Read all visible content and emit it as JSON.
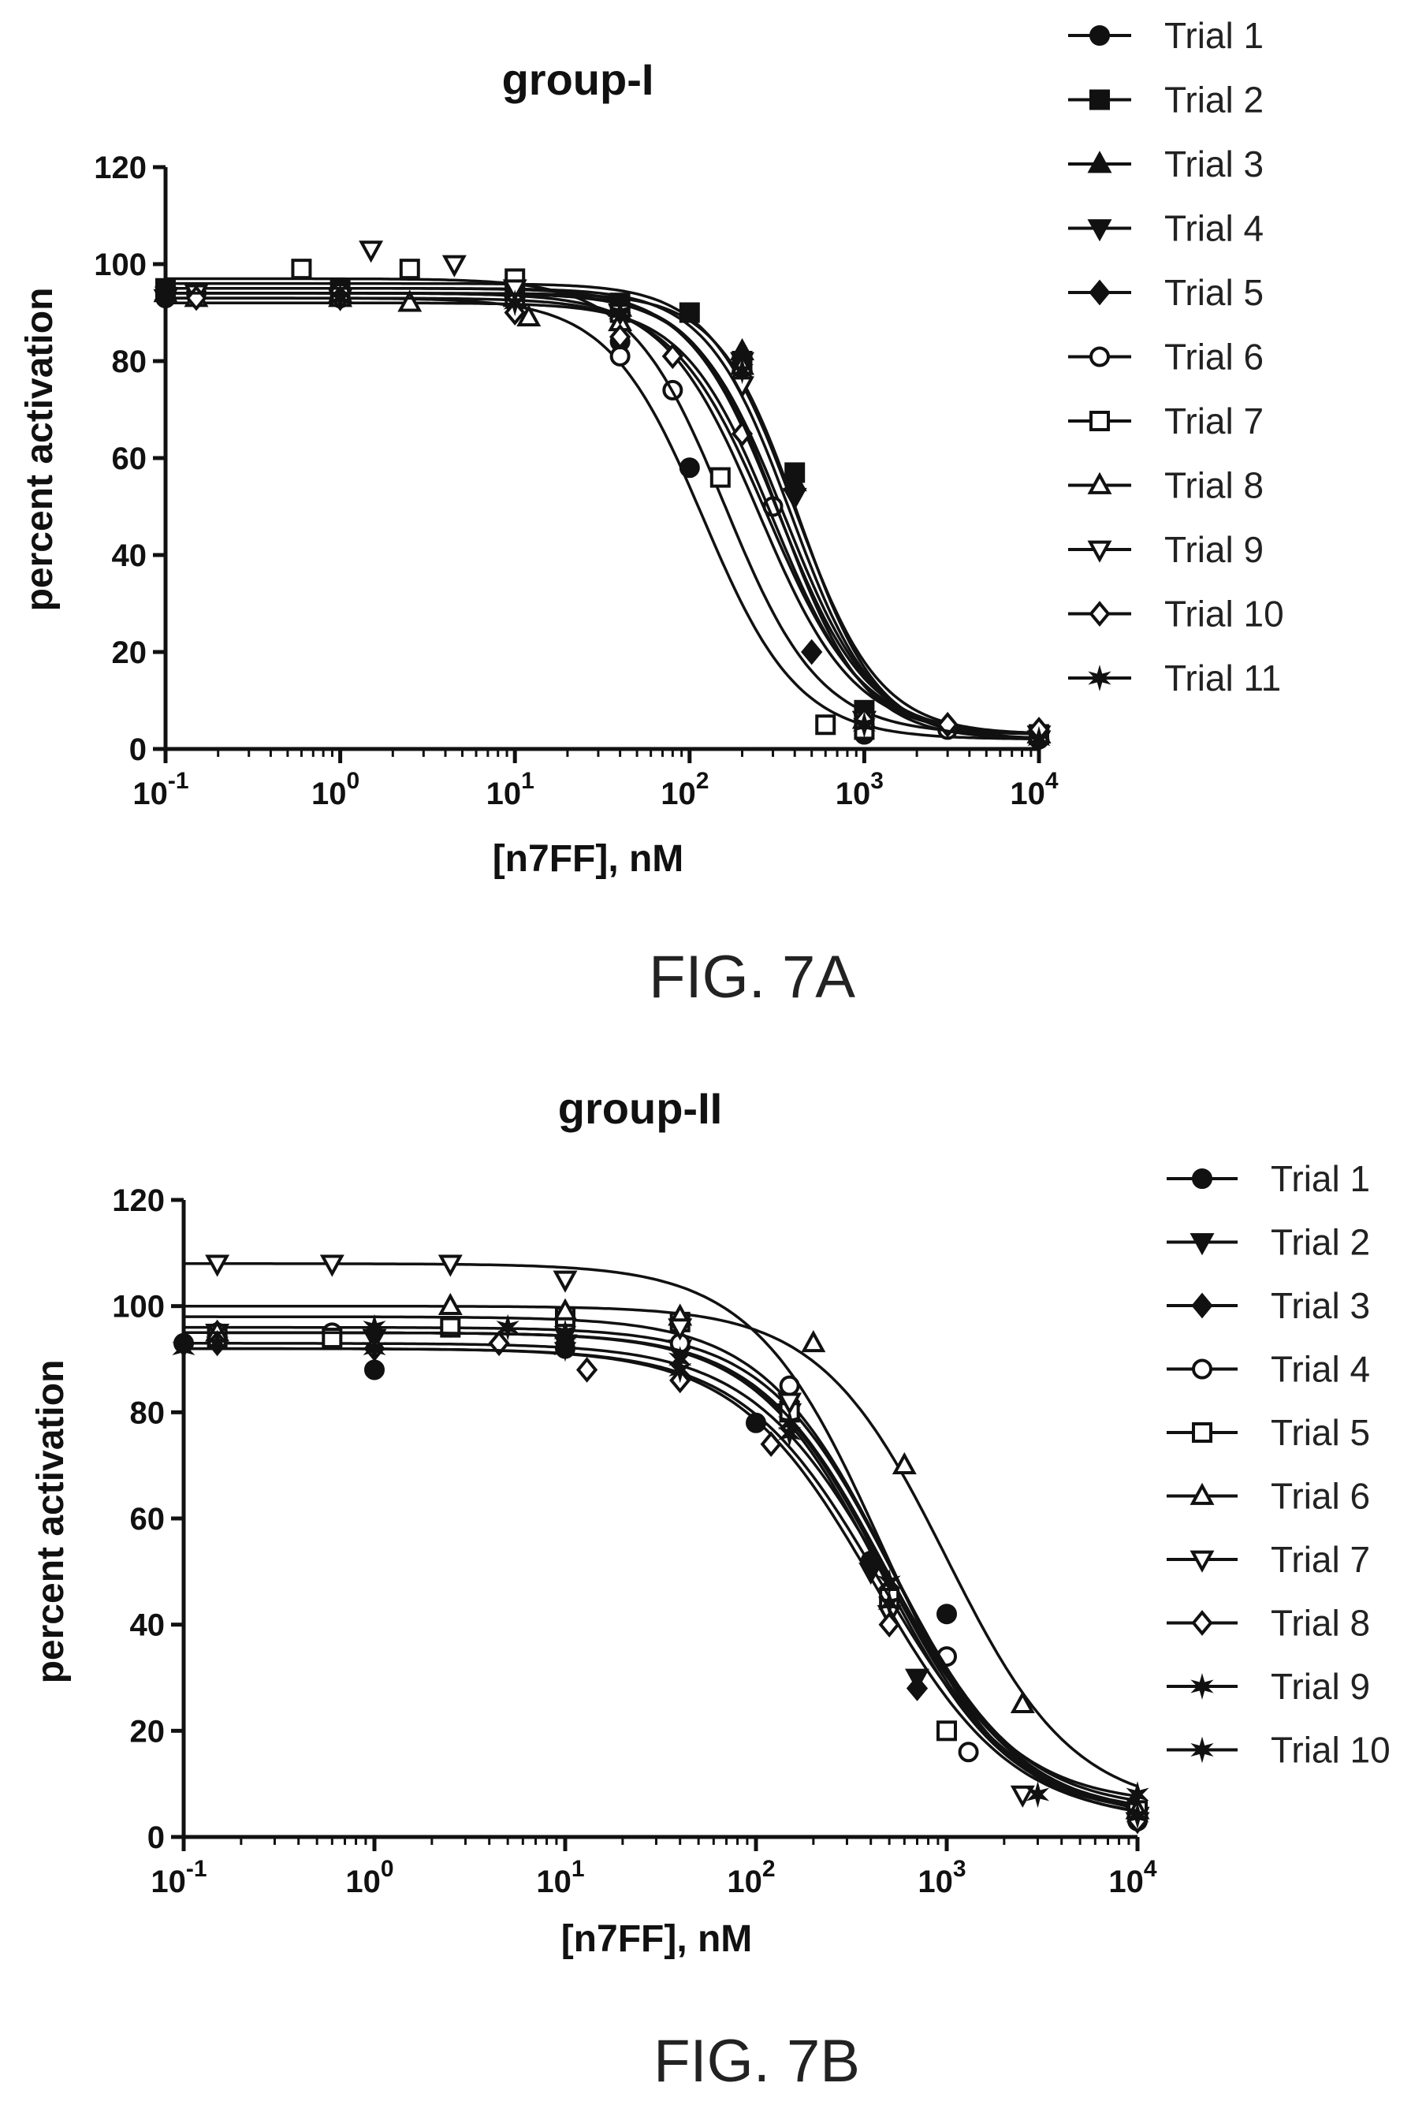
{
  "chart_data": [
    {
      "type": "line",
      "title": "group-I",
      "xlabel": "[n7FF], nM",
      "ylabel": "percent activation",
      "x_scale": "log",
      "xlim": [
        0.1,
        10000
      ],
      "ylim": [
        0,
        120
      ],
      "y_ticks": [
        0,
        20,
        40,
        60,
        80,
        100,
        120
      ],
      "x_ticks": [
        {
          "value": 0.1,
          "base": "10",
          "exp": "-1"
        },
        {
          "value": 1,
          "base": "10",
          "exp": "0"
        },
        {
          "value": 10,
          "base": "10",
          "exp": "1"
        },
        {
          "value": 100,
          "base": "10",
          "exp": "2"
        },
        {
          "value": 1000,
          "base": "10",
          "exp": "3"
        },
        {
          "value": 10000,
          "base": "10",
          "exp": "4"
        }
      ],
      "caption": "FIG. 7A",
      "legend_position": "top-right",
      "series": [
        {
          "name": "Trial 1",
          "marker": "circle-filled",
          "top": 93,
          "bottom": 2,
          "ec50": 120,
          "hill": 1.6,
          "x": [
            0.1,
            1,
            10,
            40,
            100,
            1000,
            10000
          ],
          "y": [
            93,
            93,
            93,
            84,
            58,
            3,
            2
          ]
        },
        {
          "name": "Trial 2",
          "marker": "square-filled",
          "top": 96,
          "bottom": 3,
          "ec50": 400,
          "hill": 1.8,
          "x": [
            0.1,
            1,
            10,
            40,
            100,
            200,
            400,
            1000,
            10000
          ],
          "y": [
            95,
            95,
            95,
            92,
            90,
            80,
            57,
            8,
            3
          ]
        },
        {
          "name": "Trial 3",
          "marker": "triangle-up-filled",
          "top": 95,
          "bottom": 2,
          "ec50": 380,
          "hill": 1.8,
          "x": [
            0.1,
            1,
            10,
            40,
            200,
            400,
            1000,
            10000
          ],
          "y": [
            94,
            94,
            93,
            91,
            82,
            55,
            6,
            3
          ]
        },
        {
          "name": "Trial 4",
          "marker": "triangle-down-filled",
          "top": 94,
          "bottom": 2,
          "ec50": 350,
          "hill": 1.7,
          "x": [
            0.1,
            1,
            10,
            40,
            200,
            400,
            1000,
            10000
          ],
          "y": [
            93,
            93,
            92,
            90,
            80,
            52,
            6,
            2
          ]
        },
        {
          "name": "Trial 5",
          "marker": "diamond-filled",
          "top": 94,
          "bottom": 2,
          "ec50": 420,
          "hill": 1.9,
          "x": [
            0.1,
            1,
            10,
            40,
            200,
            500,
            1000,
            10000
          ],
          "y": [
            94,
            94,
            93,
            90,
            78,
            20,
            7,
            2
          ]
        },
        {
          "name": "Trial 6",
          "marker": "circle-open",
          "top": 94,
          "bottom": 3,
          "ec50": 250,
          "hill": 1.6,
          "x": [
            0.15,
            1,
            10,
            40,
            80,
            300,
            1000,
            3000,
            10000
          ],
          "y": [
            94,
            94,
            92,
            81,
            74,
            50,
            5,
            4,
            3
          ]
        },
        {
          "name": "Trial 7",
          "marker": "square-open",
          "top": 97,
          "bottom": 3,
          "ec50": 160,
          "hill": 1.6,
          "x": [
            0.6,
            2.5,
            10,
            40,
            150,
            600,
            1000,
            10000
          ],
          "y": [
            99,
            99,
            97,
            90,
            56,
            5,
            4,
            3
          ]
        },
        {
          "name": "Trial 8",
          "marker": "triangle-up-open",
          "top": 92,
          "bottom": 3,
          "ec50": 300,
          "hill": 1.7,
          "x": [
            0.15,
            1,
            2.5,
            12,
            40,
            200,
            1000,
            10000
          ],
          "y": [
            93,
            93,
            92,
            89,
            88,
            79,
            6,
            3
          ]
        },
        {
          "name": "Trial 9",
          "marker": "triangle-down-open",
          "top": 95,
          "bottom": 3,
          "ec50": 320,
          "hill": 1.7,
          "x": [
            0.15,
            1.5,
            4.5,
            10,
            40,
            200,
            1000,
            10000
          ],
          "y": [
            94,
            103,
            100,
            95,
            90,
            75,
            6,
            3
          ]
        },
        {
          "name": "Trial 10",
          "marker": "diamond-open",
          "top": 93,
          "bottom": 3,
          "ec50": 280,
          "hill": 1.6,
          "x": [
            0.15,
            1,
            10,
            40,
            80,
            200,
            1000,
            3000,
            10000
          ],
          "y": [
            93,
            93,
            90,
            85,
            81,
            65,
            6,
            5,
            4
          ]
        },
        {
          "name": "Trial 11",
          "marker": "star",
          "top": 94,
          "bottom": 2,
          "ec50": 330,
          "hill": 1.8,
          "x": [
            0.1,
            1,
            10,
            40,
            200,
            1000,
            10000
          ],
          "y": [
            94,
            93,
            92,
            90,
            78,
            5,
            2
          ]
        }
      ]
    },
    {
      "type": "line",
      "title": "group-II",
      "xlabel": "[n7FF], nM",
      "ylabel": "percent activation",
      "x_scale": "log",
      "xlim": [
        0.1,
        10000
      ],
      "ylim": [
        0,
        120
      ],
      "y_ticks": [
        0,
        20,
        40,
        60,
        80,
        100,
        120
      ],
      "x_ticks": [
        {
          "value": 0.1,
          "base": "10",
          "exp": "-1"
        },
        {
          "value": 1,
          "base": "10",
          "exp": "0"
        },
        {
          "value": 10,
          "base": "10",
          "exp": "1"
        },
        {
          "value": 100,
          "base": "10",
          "exp": "2"
        },
        {
          "value": 1000,
          "base": "10",
          "exp": "3"
        },
        {
          "value": 10000,
          "base": "10",
          "exp": "4"
        }
      ],
      "caption": "FIG. 7B",
      "legend_position": "right",
      "series": [
        {
          "name": "Trial 1",
          "marker": "circle-filled",
          "top": 93,
          "bottom": 3,
          "ec50": 500,
          "hill": 1.2,
          "x": [
            0.1,
            1,
            10,
            100,
            400,
            1000,
            10000
          ],
          "y": [
            93,
            88,
            92,
            78,
            52,
            42,
            3
          ]
        },
        {
          "name": "Trial 2",
          "marker": "triangle-down-filled",
          "top": 95,
          "bottom": 4,
          "ec50": 480,
          "hill": 1.3,
          "x": [
            0.15,
            1,
            10,
            40,
            150,
            400,
            700,
            10000
          ],
          "y": [
            95,
            94,
            93,
            92,
            80,
            50,
            30,
            4
          ]
        },
        {
          "name": "Trial 3",
          "marker": "diamond-filled",
          "top": 95,
          "bottom": 4,
          "ec50": 460,
          "hill": 1.3,
          "x": [
            0.15,
            1,
            10,
            40,
            150,
            400,
            700,
            10000
          ],
          "y": [
            95,
            95,
            93,
            92,
            82,
            52,
            28,
            4
          ]
        },
        {
          "name": "Trial 4",
          "marker": "circle-open",
          "top": 96,
          "bottom": 4,
          "ec50": 520,
          "hill": 1.3,
          "x": [
            0.15,
            0.6,
            2.5,
            10,
            40,
            150,
            500,
            1000,
            1300,
            10000
          ],
          "y": [
            95,
            95,
            96,
            96,
            93,
            85,
            45,
            34,
            16,
            4
          ]
        },
        {
          "name": "Trial 5",
          "marker": "square-open",
          "top": 98,
          "bottom": 5,
          "ec50": 500,
          "hill": 1.3,
          "x": [
            0.15,
            0.6,
            2.5,
            10,
            40,
            150,
            500,
            1000,
            10000
          ],
          "y": [
            94,
            94,
            96,
            98,
            97,
            80,
            45,
            20,
            5
          ]
        },
        {
          "name": "Trial 6",
          "marker": "triangle-up-open",
          "top": 100,
          "bottom": 5,
          "ec50": 1000,
          "hill": 1.3,
          "x": [
            0.15,
            2.5,
            10,
            40,
            200,
            600,
            2500,
            10000
          ],
          "y": [
            95,
            100,
            99,
            98,
            93,
            70,
            25,
            5
          ]
        },
        {
          "name": "Trial 7",
          "marker": "triangle-down-open",
          "top": 108,
          "bottom": 3,
          "ec50": 450,
          "hill": 1.3,
          "x": [
            0.15,
            0.6,
            2.5,
            10,
            40,
            150,
            500,
            2500,
            10000
          ],
          "y": [
            108,
            108,
            108,
            105,
            96,
            82,
            42,
            8,
            3
          ]
        },
        {
          "name": "Trial 8",
          "marker": "diamond-open",
          "top": 92,
          "bottom": 3,
          "ec50": 420,
          "hill": 1.2,
          "x": [
            0.15,
            1,
            4.5,
            13,
            40,
            120,
            500,
            10000
          ],
          "y": [
            93,
            92,
            93,
            88,
            86,
            74,
            40,
            3
          ]
        },
        {
          "name": "Trial 9",
          "marker": "star-filled",
          "top": 95,
          "bottom": 6,
          "ec50": 480,
          "hill": 1.3,
          "x": [
            0.15,
            1,
            5,
            10,
            40,
            150,
            500,
            10000
          ],
          "y": [
            93,
            96,
            96,
            95,
            90,
            78,
            48,
            8
          ]
        },
        {
          "name": "Trial 10",
          "marker": "star",
          "top": 92,
          "bottom": 4,
          "ec50": 450,
          "hill": 1.2,
          "x": [
            0.1,
            1,
            10,
            40,
            150,
            500,
            3000,
            10000
          ],
          "y": [
            92,
            92,
            92,
            88,
            76,
            44,
            8,
            4
          ]
        }
      ]
    }
  ]
}
